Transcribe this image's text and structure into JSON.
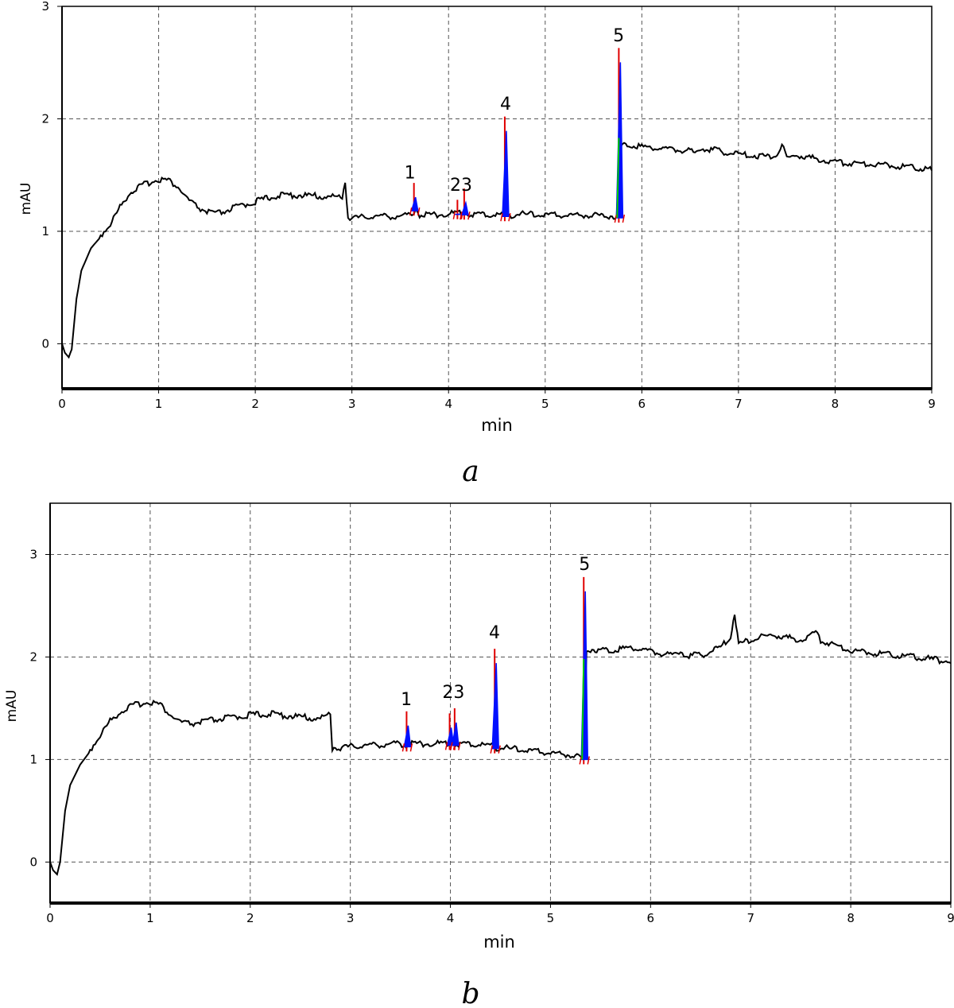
{
  "chart_data": [
    {
      "type": "line",
      "panel_label": "a",
      "xlabel": "min",
      "ylabel": "mAU",
      "xlim": [
        0,
        9
      ],
      "ylim": [
        -0.4,
        3.0
      ],
      "x_ticks": [
        "0",
        "1",
        "2",
        "3",
        "4",
        "5",
        "6",
        "7",
        "8",
        "9"
      ],
      "y_ticks": [
        "0",
        "1",
        "2",
        "3"
      ],
      "grid": true,
      "baseline": {
        "x": [
          0.0,
          0.03,
          0.07,
          0.1,
          0.15,
          0.2,
          0.3,
          0.4,
          0.5,
          0.6,
          0.7,
          0.8,
          0.9,
          1.0,
          1.1,
          1.2,
          1.3,
          1.4,
          1.5,
          1.6,
          1.7,
          1.8,
          2.0,
          2.2,
          2.4,
          2.6,
          2.8,
          2.9,
          2.93,
          2.96,
          3.0,
          3.2,
          3.5,
          3.62,
          3.66,
          3.7,
          4.0,
          4.08,
          4.15,
          4.2,
          4.5,
          4.55,
          4.6,
          4.65,
          4.7,
          5.0,
          5.5,
          5.74,
          5.77,
          5.8,
          5.85,
          6.0,
          6.5,
          6.55,
          6.6,
          7.0,
          7.3,
          7.4,
          7.45,
          7.5,
          7.6,
          8.0,
          8.5,
          9.0
        ],
        "y": [
          0.0,
          -0.08,
          -0.12,
          -0.05,
          0.4,
          0.65,
          0.85,
          0.95,
          1.05,
          1.2,
          1.33,
          1.38,
          1.42,
          1.45,
          1.44,
          1.38,
          1.27,
          1.2,
          1.16,
          1.14,
          1.17,
          1.2,
          1.25,
          1.3,
          1.31,
          1.3,
          1.29,
          1.3,
          1.42,
          1.12,
          1.1,
          1.12,
          1.12,
          1.13,
          1.2,
          1.13,
          1.14,
          1.15,
          1.15,
          1.14,
          1.13,
          1.14,
          1.13,
          1.13,
          1.14,
          1.13,
          1.13,
          1.12,
          1.7,
          1.75,
          1.76,
          1.74,
          1.7,
          1.68,
          1.73,
          1.67,
          1.65,
          1.67,
          1.75,
          1.64,
          1.66,
          1.6,
          1.58,
          1.54
        ]
      },
      "peaks": [
        {
          "label": "1",
          "x": 3.65,
          "y": 1.43
        },
        {
          "label": "2",
          "x": 4.1,
          "y": 1.28
        },
        {
          "label": "3",
          "x": 4.17,
          "y": 1.38
        },
        {
          "label": "4",
          "x": 4.59,
          "y": 2.02
        },
        {
          "label": "5",
          "x": 5.77,
          "y": 2.63
        }
      ],
      "peak_labels": [
        {
          "text": "1",
          "x": 3.6,
          "y": 1.47
        },
        {
          "text": "23",
          "x": 4.13,
          "y": 1.36
        },
        {
          "text": "4",
          "x": 4.59,
          "y": 2.08
        },
        {
          "text": "5",
          "x": 5.76,
          "y": 2.69
        }
      ],
      "colors": {
        "trace": "#000000",
        "peak_start": "#e00000",
        "peak_fill": "#0010ff",
        "peak_end": "#00cc00"
      }
    },
    {
      "type": "line",
      "panel_label": "b",
      "xlabel": "min",
      "ylabel": "mAU",
      "xlim": [
        0,
        9
      ],
      "ylim": [
        -0.4,
        3.5
      ],
      "x_ticks": [
        "0",
        "1",
        "2",
        "3",
        "4",
        "5",
        "6",
        "7",
        "8",
        "9"
      ],
      "y_ticks": [
        "0",
        "1",
        "2",
        "3"
      ],
      "grid": true,
      "baseline": {
        "x": [
          0.0,
          0.03,
          0.07,
          0.1,
          0.15,
          0.2,
          0.3,
          0.4,
          0.5,
          0.6,
          0.7,
          0.8,
          0.9,
          1.0,
          1.1,
          1.2,
          1.3,
          1.4,
          1.5,
          1.7,
          2.0,
          2.2,
          2.5,
          2.7,
          2.8,
          2.82,
          2.85,
          2.9,
          3.1,
          3.5,
          3.56,
          3.6,
          4.0,
          4.3,
          4.43,
          4.46,
          4.5,
          4.8,
          5.0,
          5.2,
          5.33,
          5.36,
          5.4,
          5.6,
          5.8,
          6.0,
          6.2,
          6.3,
          6.35,
          6.5,
          6.7,
          6.8,
          6.84,
          6.88,
          6.95,
          7.2,
          7.5,
          7.65,
          7.7,
          8.0,
          8.5,
          9.0
        ],
        "y": [
          0.0,
          -0.08,
          -0.12,
          0.0,
          0.5,
          0.75,
          0.95,
          1.08,
          1.22,
          1.36,
          1.45,
          1.5,
          1.53,
          1.55,
          1.52,
          1.42,
          1.35,
          1.33,
          1.35,
          1.38,
          1.42,
          1.43,
          1.4,
          1.38,
          1.44,
          1.1,
          1.1,
          1.1,
          1.12,
          1.14,
          1.12,
          1.14,
          1.14,
          1.13,
          1.12,
          1.1,
          1.1,
          1.07,
          1.05,
          1.03,
          1.0,
          2.05,
          2.06,
          2.05,
          2.08,
          2.04,
          2.0,
          2.05,
          2.0,
          2.0,
          2.08,
          2.18,
          2.42,
          2.1,
          2.14,
          2.2,
          2.15,
          2.22,
          2.15,
          2.05,
          2.0,
          1.94
        ]
      },
      "peaks": [
        {
          "label": "1",
          "x": 3.57,
          "y": 1.47
        },
        {
          "label": "2",
          "x": 4.0,
          "y": 1.45
        },
        {
          "label": "3",
          "x": 4.05,
          "y": 1.5
        },
        {
          "label": "4",
          "x": 4.45,
          "y": 2.08
        },
        {
          "label": "5",
          "x": 5.34,
          "y": 2.78
        }
      ],
      "peak_labels": [
        {
          "text": "1",
          "x": 3.56,
          "y": 1.53
        },
        {
          "text": "23",
          "x": 4.03,
          "y": 1.6
        },
        {
          "text": "4",
          "x": 4.44,
          "y": 2.18
        },
        {
          "text": "5",
          "x": 5.34,
          "y": 2.85
        }
      ],
      "colors": {
        "trace": "#000000",
        "peak_start": "#e00000",
        "peak_fill": "#0010ff",
        "peak_end": "#00cc00"
      }
    }
  ]
}
